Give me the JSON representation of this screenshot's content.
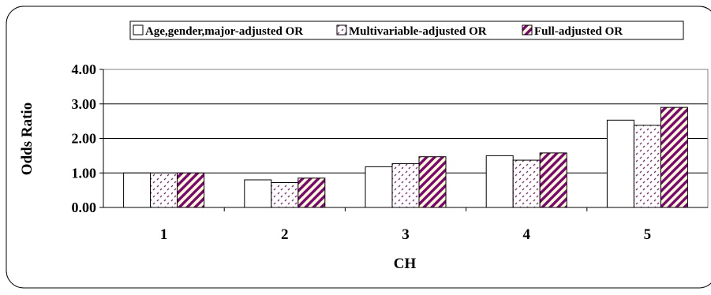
{
  "chart_data": {
    "type": "bar",
    "title": "",
    "xlabel": "CH",
    "ylabel": "Odds Ratio",
    "categories": [
      "1",
      "2",
      "3",
      "4",
      "5"
    ],
    "ylim": [
      0,
      4
    ],
    "yticks": [
      "0.00",
      "1.00",
      "2.00",
      "3.00",
      "4.00"
    ],
    "grid": true,
    "legend_position": "top",
    "series": [
      {
        "name": "Age,gender,major-adjusted OR",
        "values": [
          1.0,
          0.8,
          1.18,
          1.5,
          2.53
        ],
        "fill": "#ffffff",
        "pattern": "none"
      },
      {
        "name": "Multivariable-adjusted OR",
        "values": [
          1.0,
          0.72,
          1.27,
          1.37,
          2.38
        ],
        "fill": "#ffffff",
        "pattern": "dots",
        "pattern_color": "#8b2f7a"
      },
      {
        "name": "Full-adjusted OR",
        "values": [
          1.0,
          0.85,
          1.47,
          1.58,
          2.9
        ],
        "fill": "#ffffcc",
        "pattern": "diagonal",
        "pattern_color": "#800080"
      }
    ]
  }
}
